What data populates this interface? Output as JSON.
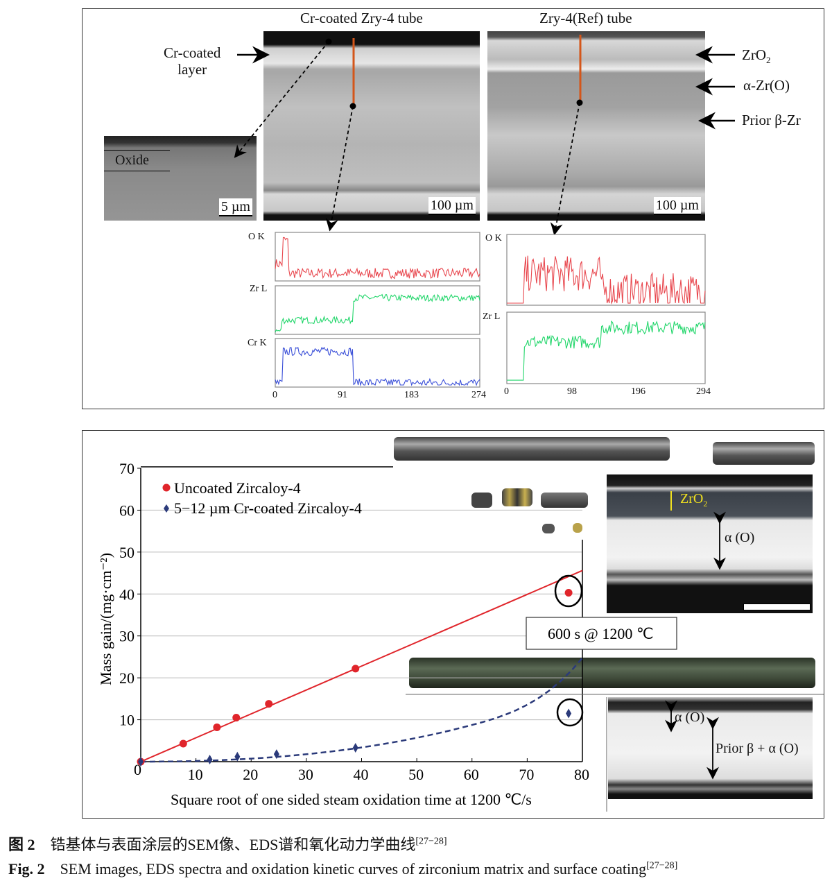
{
  "top_panel": {
    "title_left": "Cr-coated Zry-4 tube",
    "title_right": "Zry-4(Ref) tube",
    "label_cr_layer_1": "Cr-coated",
    "label_cr_layer_2": "layer",
    "label_oxide": "Oxide",
    "scale_inset": "5 µm",
    "scale_left": "100 µm",
    "scale_right": "100 µm",
    "label_zro2": "ZrO",
    "label_zro2_sub": "2",
    "label_alpha": "α-Zr(O)",
    "label_beta": "Prior β-Zr"
  },
  "eds": {
    "left": {
      "traces": [
        {
          "label": "O K",
          "color": "#e8474e",
          "profile": [
            [
              0,
              10,
              0.35
            ],
            [
              10,
              18,
              0.9
            ],
            [
              18,
              274,
              0.13
            ]
          ],
          "noise": 0.12
        },
        {
          "label": "Zr L",
          "color": "#21d66a",
          "profile": [
            [
              0,
              8,
              0.03
            ],
            [
              8,
              105,
              0.28
            ],
            [
              105,
              274,
              0.8
            ]
          ],
          "noise": 0.08
        },
        {
          "label": "Cr K",
          "color": "#3a4fd8",
          "profile": [
            [
              0,
              10,
              0.04
            ],
            [
              10,
              105,
              0.78
            ],
            [
              105,
              274,
              0.05
            ]
          ],
          "noise": 0.1
        }
      ],
      "xlim": [
        0,
        274
      ],
      "ticks": [
        "0",
        "91",
        "183",
        "274"
      ]
    },
    "right": {
      "traces": [
        {
          "label": "O K",
          "color": "#e8474e",
          "profile": [
            [
              0,
              25,
              0.0
            ],
            [
              25,
              140,
              0.45
            ],
            [
              140,
              294,
              0.18
            ]
          ],
          "noise": 0.28
        },
        {
          "label": "Zr L",
          "color": "#21d66a",
          "profile": [
            [
              0,
              25,
              0.02
            ],
            [
              25,
              140,
              0.6
            ],
            [
              140,
              294,
              0.82
            ]
          ],
          "noise": 0.1
        }
      ],
      "xlim": [
        0,
        294
      ],
      "ticks": [
        "0",
        "98",
        "196",
        "294"
      ]
    }
  },
  "chart_data": {
    "type": "scatter",
    "xlabel": "Square root of one sided steam oxidation time at 1200 ℃/s",
    "ylabel": "Mass gain/(mg·cm⁻²)",
    "xlim": [
      0,
      80
    ],
    "ylim": [
      0,
      70
    ],
    "xticks": [
      "0",
      "10",
      "20",
      "30",
      "40",
      "50",
      "60",
      "70",
      "80"
    ],
    "yticks": [
      "10",
      "20",
      "30",
      "40",
      "50",
      "60",
      "70"
    ],
    "grid": true,
    "legend_placement": "top-left",
    "series": [
      {
        "name": "Uncoated Zircaloy-4",
        "color": "#e0252b",
        "marker": "circle",
        "fit": "linear",
        "x": [
          0,
          7.7,
          13.8,
          17.3,
          23.2,
          38.9,
          77.5
        ],
        "y": [
          0,
          4.3,
          8.2,
          10.5,
          13.8,
          22.2,
          40.3
        ]
      },
      {
        "name": "5−12 µm Cr-coated Zircaloy-4",
        "color": "#2b3a7a",
        "marker": "diamond",
        "fit": "dashed-curve",
        "x": [
          0,
          12.5,
          17.5,
          24.6,
          38.9,
          77.5
        ],
        "y": [
          0,
          0.5,
          1.2,
          1.8,
          3.3,
          11.5
        ]
      }
    ],
    "annotation": "600 s @ 1200 ℃"
  },
  "micrographs": {
    "top_zro2": "ZrO",
    "top_zro2_sub": "2",
    "top_alpha": "α (O)",
    "bottom_alpha": "α (O)",
    "bottom_beta": "Prior β + α (O)"
  },
  "caption": {
    "cn_label": "图 2",
    "cn_text": "锆基体与表面涂层的SEM像、EDS谱和氧化动力学曲线",
    "cn_ref": "[27−28]",
    "en_label": "Fig. 2",
    "en_text": "SEM images, EDS spectra and oxidation kinetic curves of zirconium matrix and surface coating",
    "en_ref": "[27−28]"
  }
}
